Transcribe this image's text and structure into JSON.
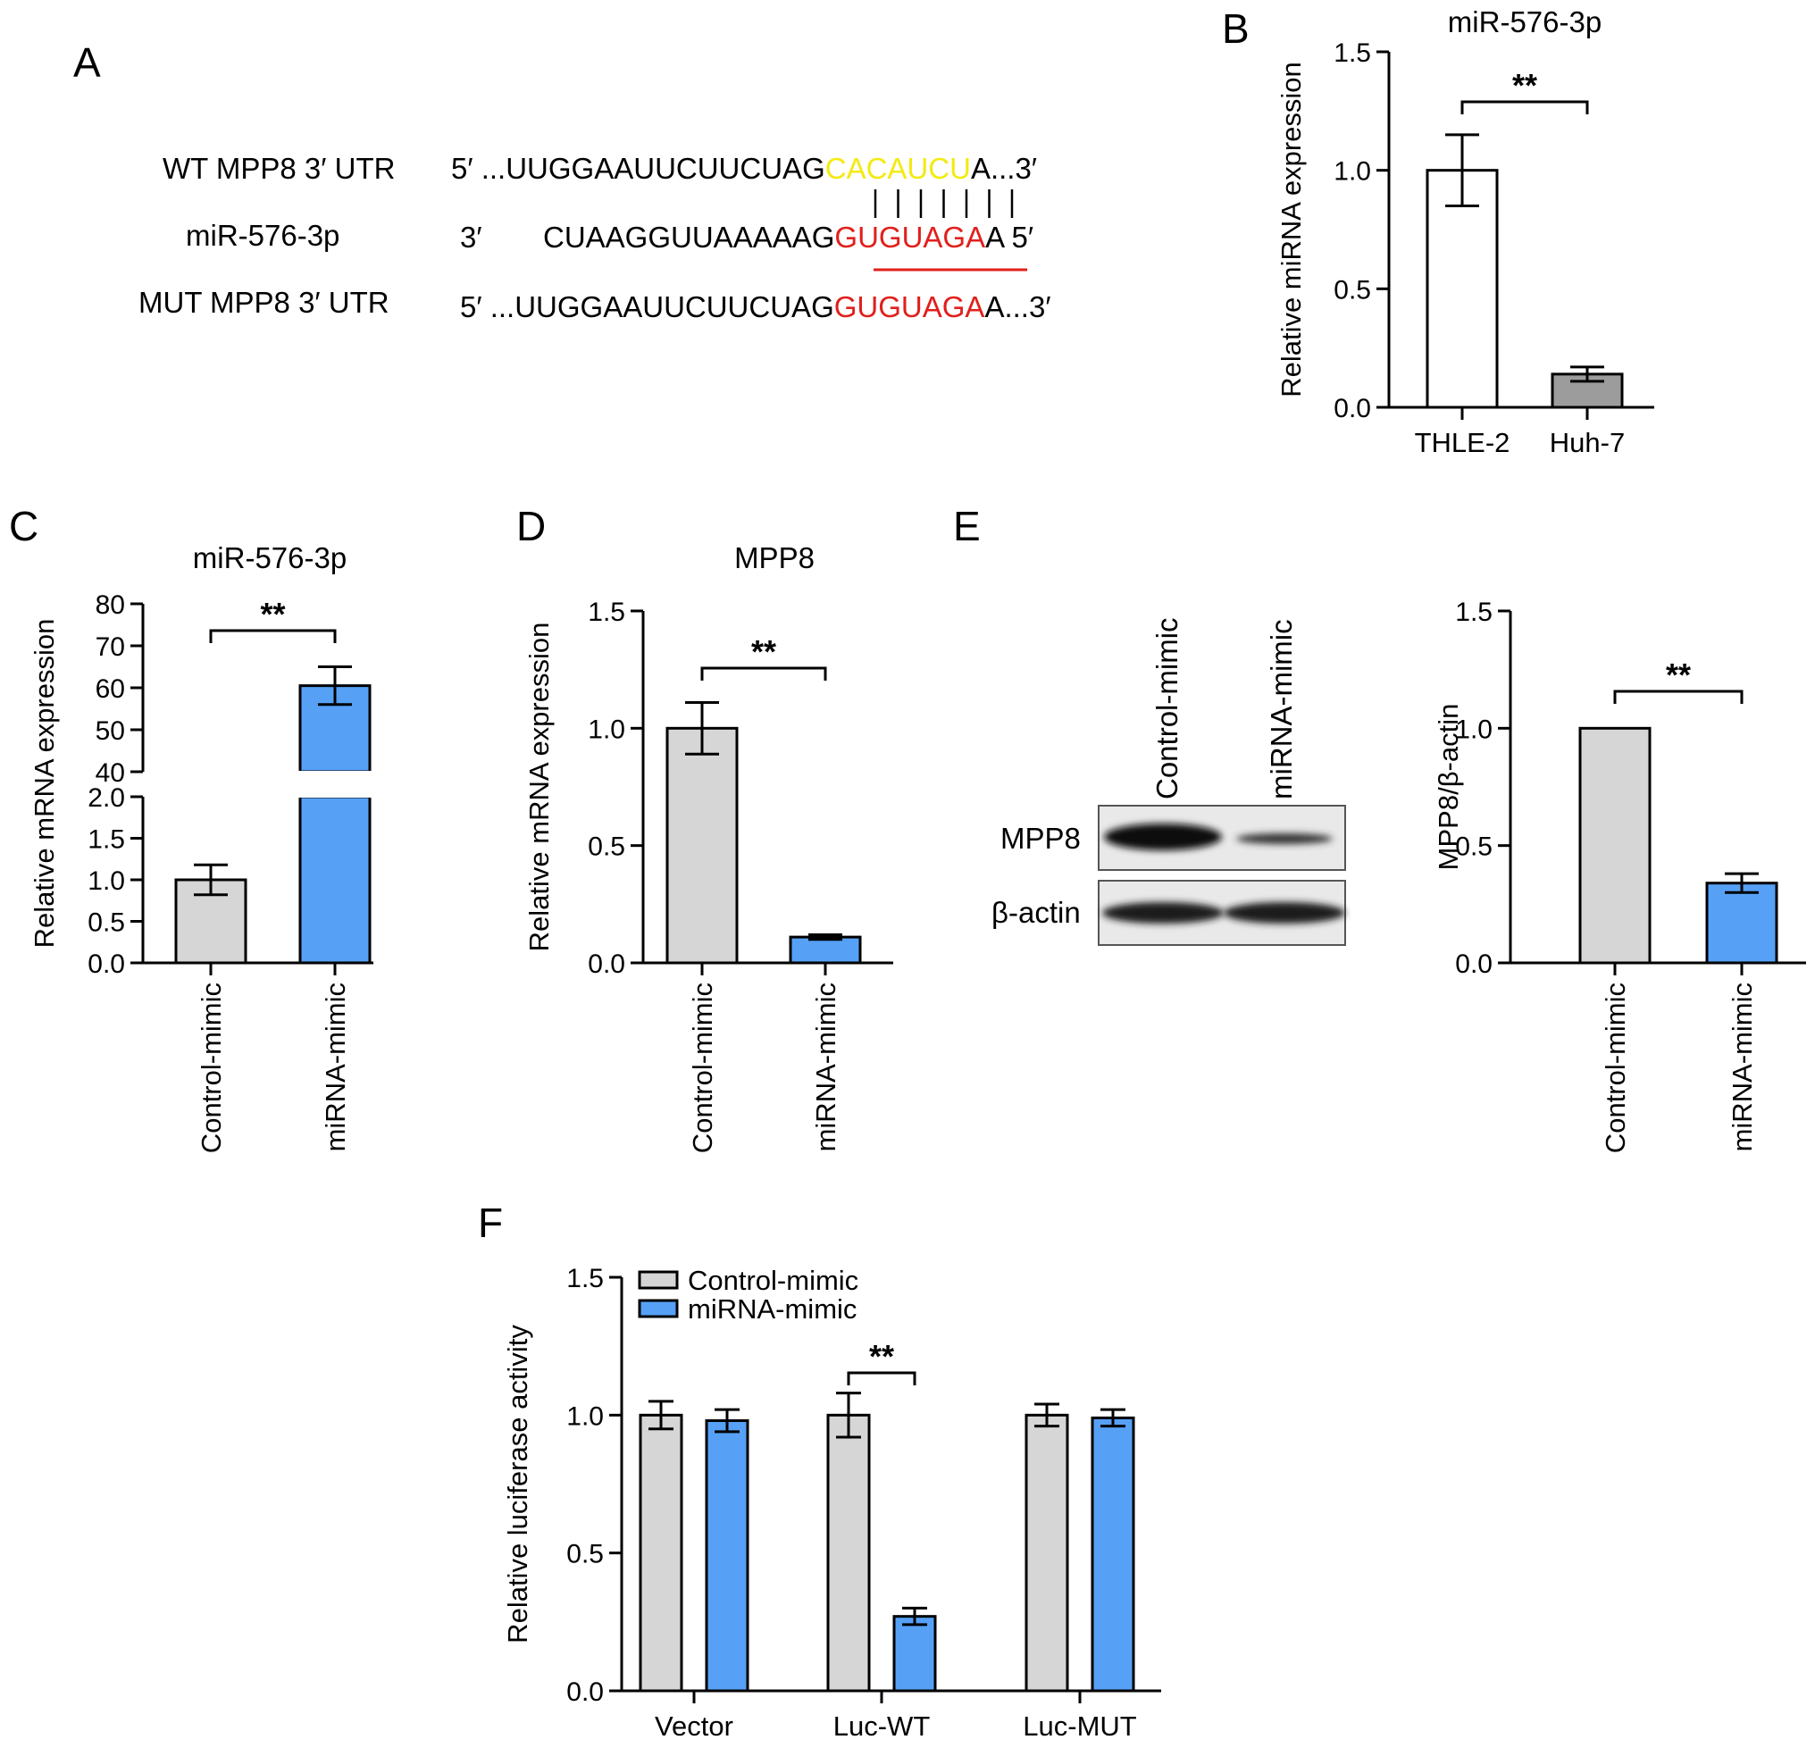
{
  "colors": {
    "control": "#d6d6d6",
    "mimic": "#56a1f6",
    "gray_dark": "#9c9c9c",
    "white": "#ffffff",
    "seed_wt": "#f3ea12",
    "seed_mut": "#e0201c"
  },
  "panel_A": {
    "letter": "A",
    "rows": [
      {
        "label": "WT MPP8 3′ UTR",
        "prefix": "5′ ...UUGGAAUUCUUCUAG",
        "seed": "CACAUCU",
        "suffix": "A...3′",
        "seed_color": "seed_wt"
      },
      {
        "label": "miR-576-3p",
        "lead": "3′",
        "prefix": "CUAAGGUUAAAAAG",
        "seed": "GUGUAGA",
        "suffix": "A 5′",
        "seed_color": "seed_mut"
      },
      {
        "label": "MUT MPP8 3′ UTR",
        "prefix": "5′ ...UUGGAAUUCUUCUAG",
        "seed": "GUGUAGA",
        "suffix": "A...3′",
        "seed_color": "seed_mut"
      }
    ]
  },
  "chart_data": [
    {
      "panel": "B",
      "type": "bar",
      "title": "miR-576-3p",
      "ylabel": "Relative miRNA expression",
      "ylim": [
        0,
        1.5
      ],
      "yticks": [
        "0.0",
        "0.5",
        "1.0",
        "1.5"
      ],
      "categories": [
        "THLE-2",
        "Huh-7"
      ],
      "values": [
        1.0,
        0.14
      ],
      "errors": [
        0.15,
        0.03
      ],
      "bar_colors": [
        "white",
        "gray_dark"
      ],
      "significance": "**"
    },
    {
      "panel": "C",
      "type": "bar",
      "title": "miR-576-3p",
      "ylabel": "Relative mRNA expression",
      "broken_axis": true,
      "ylim_lower": [
        0,
        2.0
      ],
      "yticks_lower": [
        "0.0",
        "0.5",
        "1.0",
        "1.5",
        "2.0"
      ],
      "ylim_upper": [
        40,
        80
      ],
      "yticks_upper": [
        "40",
        "50",
        "60",
        "70",
        "80"
      ],
      "categories": [
        "Control-mimic",
        "miRNA-mimic"
      ],
      "values": [
        1.0,
        60.5
      ],
      "errors": [
        0.18,
        4.5
      ],
      "bar_colors": [
        "control",
        "mimic"
      ],
      "significance": "**"
    },
    {
      "panel": "D",
      "type": "bar",
      "title": "MPP8",
      "ylabel": "Relative mRNA expression",
      "ylim": [
        0,
        1.5
      ],
      "yticks": [
        "0.0",
        "0.5",
        "1.0",
        "1.5"
      ],
      "categories": [
        "Control-mimic",
        "miRNA-mimic"
      ],
      "values": [
        1.0,
        0.11
      ],
      "errors": [
        0.11,
        0.01
      ],
      "bar_colors": [
        "control",
        "mimic"
      ],
      "significance": "**"
    },
    {
      "panel": "E",
      "type": "bar",
      "ylabel": "MPP8/β-actin",
      "ylim": [
        0,
        1.5
      ],
      "yticks": [
        "0.0",
        "0.5",
        "1.0",
        "1.5"
      ],
      "categories": [
        "Control-mimic",
        "miRNA-mimic"
      ],
      "values": [
        1.0,
        0.34
      ],
      "errors": [
        0.0,
        0.04
      ],
      "bar_colors": [
        "control",
        "mimic"
      ],
      "significance": "**"
    },
    {
      "panel": "F",
      "type": "bar",
      "ylabel": "Relative luciferase activity",
      "ylim": [
        0,
        1.5
      ],
      "yticks": [
        "0.0",
        "0.5",
        "1.0",
        "1.5"
      ],
      "categories": [
        "Vector",
        "Luc-WT",
        "Luc-MUT"
      ],
      "series": [
        {
          "name": "Control-mimic",
          "values": [
            1.0,
            1.0,
            1.0
          ],
          "errors": [
            0.05,
            0.08,
            0.04
          ],
          "color": "control"
        },
        {
          "name": "miRNA-mimic",
          "values": [
            0.98,
            0.27,
            0.99
          ],
          "errors": [
            0.04,
            0.03,
            0.03
          ],
          "color": "mimic"
        }
      ],
      "legend": "top-left",
      "significance": "**",
      "significance_category": "Luc-WT"
    }
  ],
  "panel_E_blot": {
    "letter": "E",
    "lanes": [
      "Control-mimic",
      "miRNA-mimic"
    ],
    "rows": [
      "MPP8",
      "β-actin"
    ]
  },
  "letters": {
    "B": "B",
    "C": "C",
    "D": "D",
    "F": "F"
  }
}
